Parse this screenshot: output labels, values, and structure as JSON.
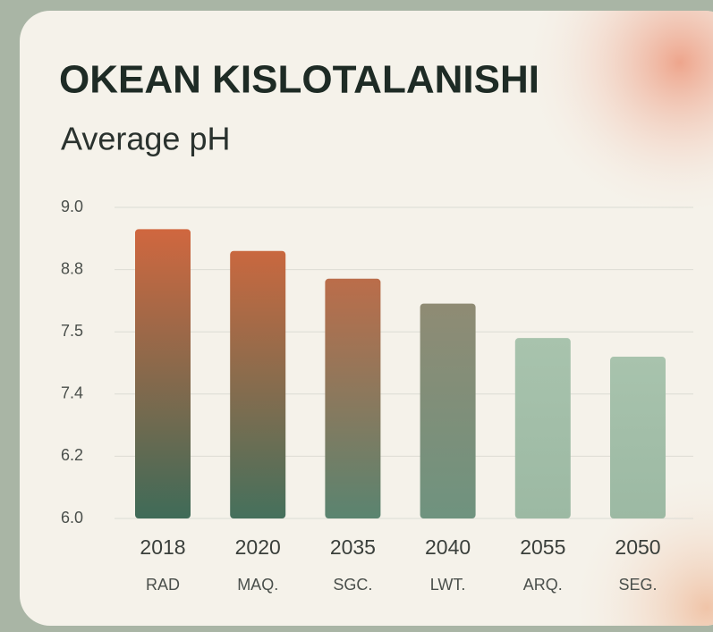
{
  "chart_data": {
    "type": "bar",
    "title": "OKEAN KISLOTALANISHI",
    "subtitle": "Average pH",
    "categories": [
      "2018",
      "2020",
      "2035",
      "2040",
      "2055",
      "2050"
    ],
    "sublabels": [
      "RAD",
      "MAQ.",
      "SGC.",
      "LWT.",
      "ARQ.",
      "SEG."
    ],
    "values": [
      8.93,
      8.86,
      8.61,
      8.09,
      7.49,
      7.46
    ],
    "colors": [
      {
        "top": "#d0673f",
        "bottom": "#3f6b58"
      },
      {
        "top": "#c9683f",
        "bottom": "#45705c"
      },
      {
        "top": "#bb6d4a",
        "bottom": "#5a8470"
      },
      {
        "top": "#8f8b74",
        "bottom": "#6f937f"
      },
      {
        "top": "#a8c3ad",
        "bottom": "#9cb9a3"
      },
      {
        "top": "#a8c3ad",
        "bottom": "#9cb9a3"
      }
    ],
    "ylim": [
      6.0,
      9.0
    ],
    "yticks": [
      {
        "value": 9,
        "label": "9.0"
      },
      8.8,
      7.5,
      7.4,
      6.2,
      {
        "value": 6,
        "label": "6.0"
      }
    ],
    "grid": true
  }
}
